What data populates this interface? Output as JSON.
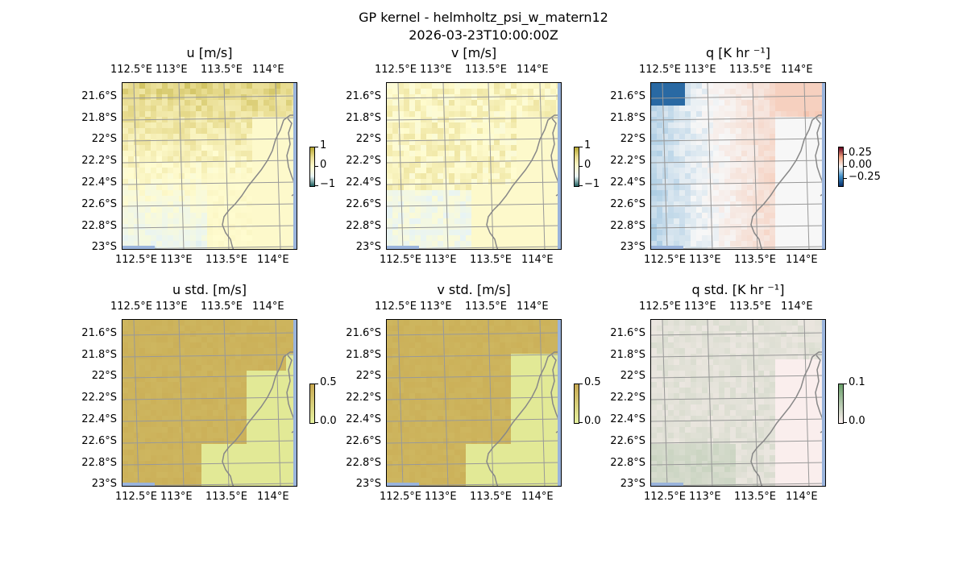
{
  "figure": {
    "title": "GP kernel - helmholtz_psi_w_matern12",
    "subtitle": "2026-03-23T10:00:00Z"
  },
  "chart_data": [
    {
      "type": "heatmap",
      "title": "u [m/s]",
      "lon_ticks": [
        "112.5°E",
        "113°E",
        "113.5°E",
        "114°E"
      ],
      "lat_ticks": [
        "21.6°S",
        "21.8°S",
        "22°S",
        "22.2°S",
        "22.4°S",
        "22.6°S",
        "22.8°S",
        "23°S"
      ],
      "xlim": [
        112.45,
        114.2
      ],
      "ylim": [
        -23.0,
        -21.47
      ],
      "colorbar": {
        "ticks": [
          "1",
          "0",
          "−1"
        ],
        "range": [
          -1,
          1
        ]
      },
      "field": "olive-to-teal speeds, higher in north-west, lower near coast",
      "cmap": [
        "#1f5f5f",
        "#e8f4f4",
        "#fffcd0",
        "#e8dc90",
        "#b8a830"
      ]
    },
    {
      "type": "heatmap",
      "title": "v [m/s]",
      "lon_ticks": [
        "112.5°E",
        "113°E",
        "113.5°E",
        "114°E"
      ],
      "lat_ticks": [
        "21.6°S",
        "21.8°S",
        "22°S",
        "22.2°S",
        "22.4°S",
        "22.6°S",
        "22.8°S",
        "23°S"
      ],
      "xlim": [
        112.45,
        114.2
      ],
      "ylim": [
        -23.0,
        -21.47
      ],
      "colorbar": {
        "ticks": [
          "1",
          "0",
          "−1"
        ],
        "range": [
          -1,
          1
        ]
      },
      "cmap": [
        "#1f5f5f",
        "#e8f4f4",
        "#fffcd0",
        "#e8dc90",
        "#b8a830"
      ]
    },
    {
      "type": "heatmap",
      "title": "q [K hr ⁻¹]",
      "lon_ticks": [
        "112.5°E",
        "113°E",
        "113.5°E",
        "114°E"
      ],
      "lat_ticks": [
        "21.6°S",
        "21.8°S",
        "22°S",
        "22.2°S",
        "22.4°S",
        "22.6°S",
        "22.8°S",
        "23°S"
      ],
      "xlim": [
        112.45,
        114.2
      ],
      "ylim": [
        -23.0,
        -21.47
      ],
      "colorbar": {
        "ticks": [
          "0.25",
          "0.00",
          "−0.25"
        ],
        "range": [
          -0.35,
          0.35
        ]
      },
      "cmap": [
        "#08306b",
        "#3f8fc8",
        "#f7f7f7",
        "#f4a582",
        "#67001f"
      ]
    },
    {
      "type": "heatmap",
      "title": "u std. [m/s]",
      "lon_ticks": [
        "112.5°E",
        "113°E",
        "113.5°E",
        "114°E"
      ],
      "lat_ticks": [
        "21.6°S",
        "21.8°S",
        "22°S",
        "22.2°S",
        "22.4°S",
        "22.6°S",
        "22.8°S",
        "23°S"
      ],
      "xlim": [
        112.45,
        114.2
      ],
      "ylim": [
        -23.0,
        -21.47
      ],
      "colorbar": {
        "ticks": [
          "0.5",
          "0.0"
        ],
        "range": [
          0,
          0.5
        ]
      },
      "cmap": [
        "#e6f2a0",
        "#c8a850"
      ]
    },
    {
      "type": "heatmap",
      "title": "v std. [m/s]",
      "lon_ticks": [
        "112.5°E",
        "113°E",
        "113.5°E",
        "114°E"
      ],
      "lat_ticks": [
        "21.6°S",
        "21.8°S",
        "22°S",
        "22.2°S",
        "22.4°S",
        "22.6°S",
        "22.8°S",
        "23°S"
      ],
      "xlim": [
        112.45,
        114.2
      ],
      "ylim": [
        -23.0,
        -21.47
      ],
      "colorbar": {
        "ticks": [
          "0.5",
          "0.0"
        ],
        "range": [
          0,
          0.5
        ]
      },
      "cmap": [
        "#e6f2a0",
        "#c8a850"
      ]
    },
    {
      "type": "heatmap",
      "title": "q std. [K hr ⁻¹]",
      "lon_ticks": [
        "112.5°E",
        "113°E",
        "113.5°E",
        "114°E"
      ],
      "lat_ticks": [
        "21.6°S",
        "21.8°S",
        "22°S",
        "22.2°S",
        "22.4°S",
        "22.6°S",
        "22.8°S",
        "23°S"
      ],
      "xlim": [
        112.45,
        114.2
      ],
      "ylim": [
        -23.0,
        -21.47
      ],
      "colorbar": {
        "ticks": [
          "0.1",
          "0.0"
        ],
        "range": [
          0,
          0.1
        ]
      },
      "cmap": [
        "#fdf0f0",
        "#6aa06a"
      ]
    }
  ]
}
